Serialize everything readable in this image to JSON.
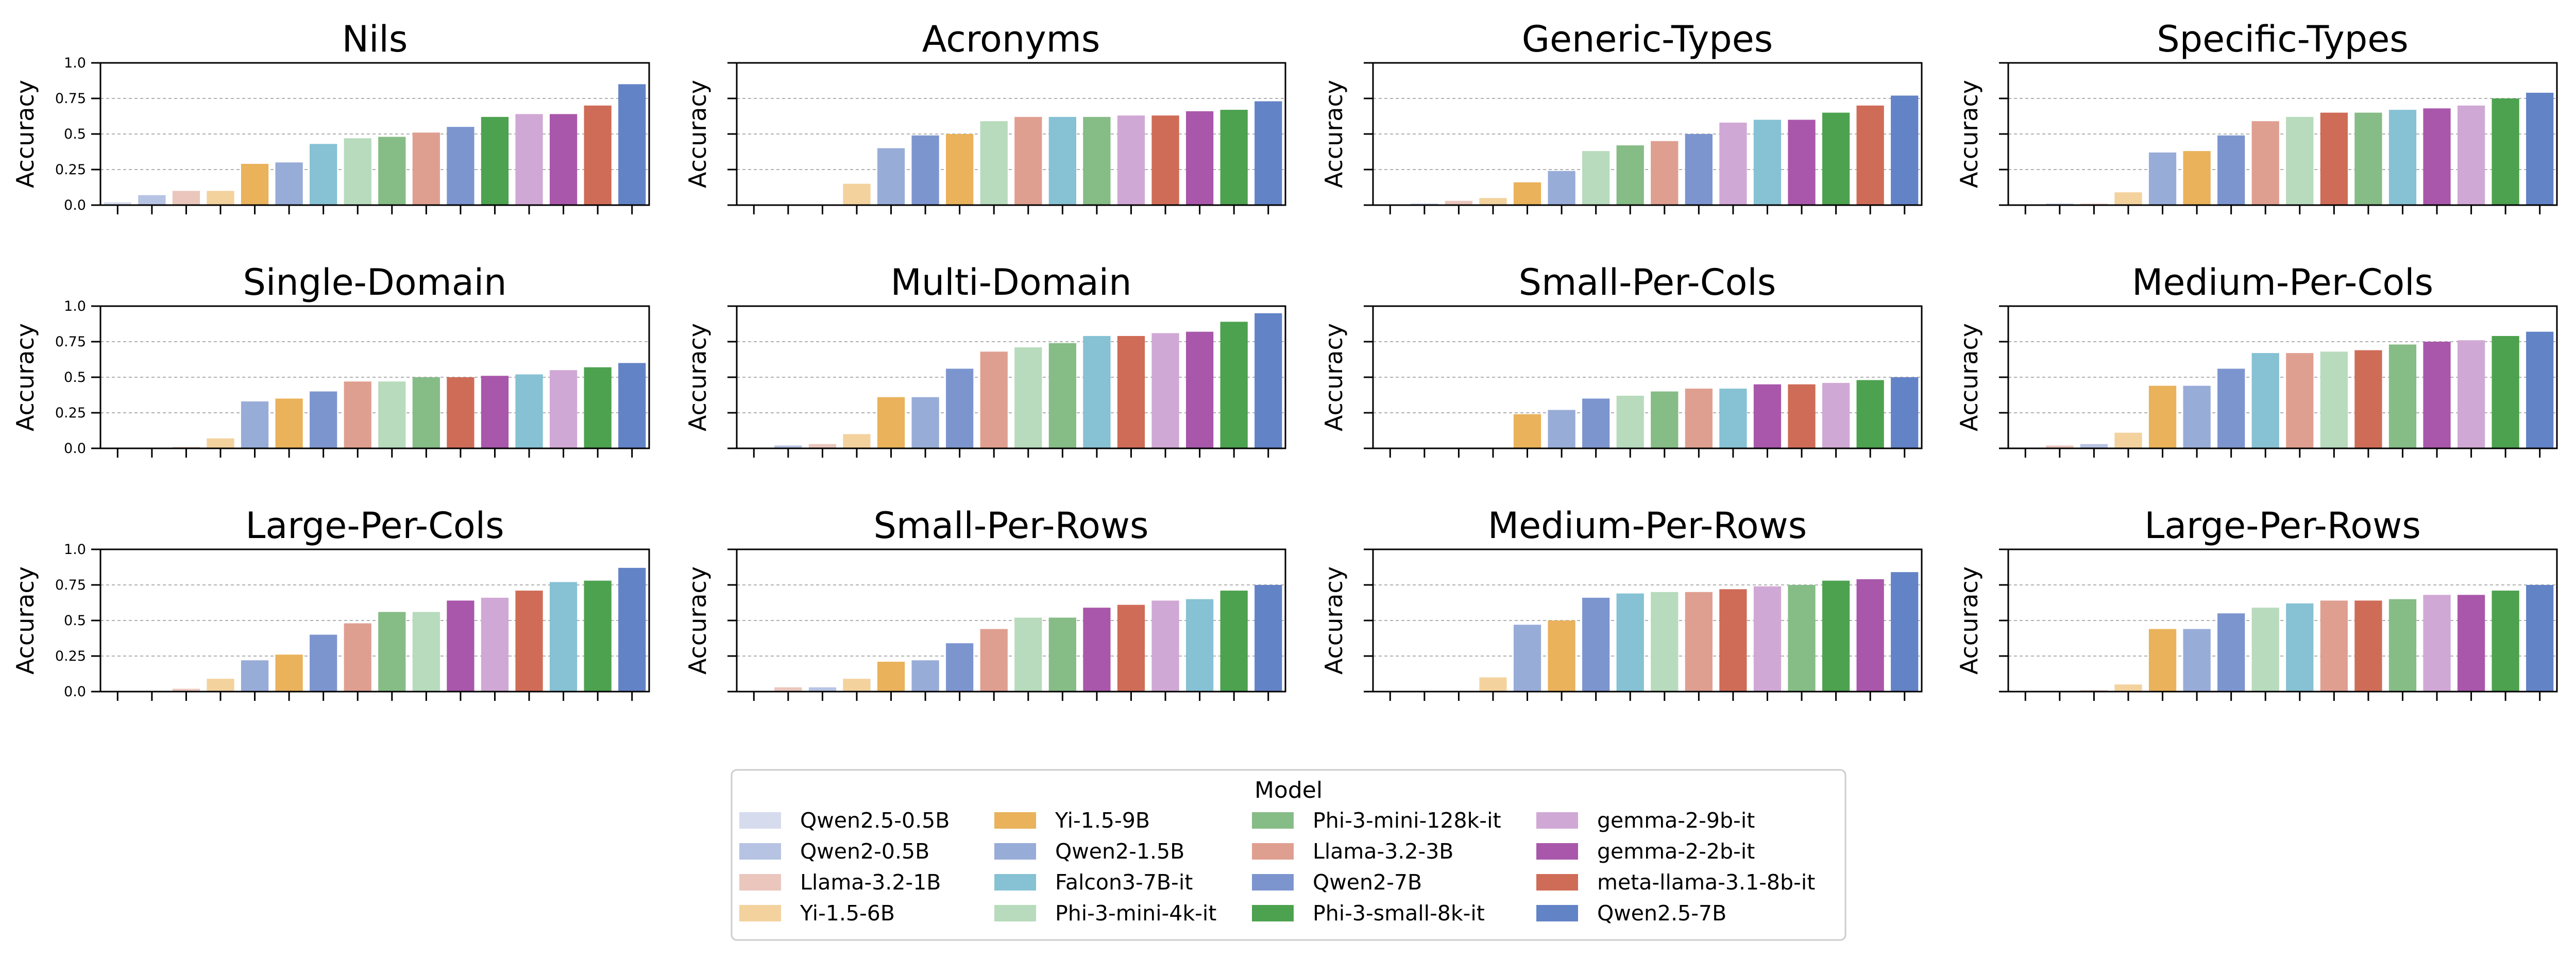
{
  "legend": {
    "title": "Model",
    "entries": [
      {
        "name": "Qwen2.5-0.5B",
        "color": "#d6dcee"
      },
      {
        "name": "Qwen2-0.5B",
        "color": "#b7c3e3"
      },
      {
        "name": "Llama-3.2-1B",
        "color": "#eac6bd"
      },
      {
        "name": "Yi-1.5-6B",
        "color": "#f3d29e"
      },
      {
        "name": "Yi-1.5-9B",
        "color": "#e9b25b"
      },
      {
        "name": "Qwen2-1.5B",
        "color": "#98acd8"
      },
      {
        "name": "Falcon3-7B-it",
        "color": "#86c1d4"
      },
      {
        "name": "Phi-3-mini-4k-it",
        "color": "#b7dbbc"
      },
      {
        "name": "Phi-3-mini-128k-it",
        "color": "#86bc86"
      },
      {
        "name": "Llama-3.2-3B",
        "color": "#df9f90"
      },
      {
        "name": "Qwen2-7B",
        "color": "#7d95cf"
      },
      {
        "name": "Phi-3-small-8k-it",
        "color": "#4da24f"
      },
      {
        "name": "gemma-2-9b-it",
        "color": "#d0a8d5"
      },
      {
        "name": "gemma-2-2b-it",
        "color": "#a957ab"
      },
      {
        "name": "meta-llama-3.1-8b-it",
        "color": "#cf6c57"
      },
      {
        "name": "Qwen2.5-7B",
        "color": "#6383c7"
      }
    ]
  },
  "chart_data": [
    {
      "type": "bar",
      "title": "Nils",
      "ylabel": "Accuracy",
      "ylim": [
        0,
        1
      ],
      "yticks": [
        "0.0",
        "0.25",
        "0.5",
        "0.75",
        "1.0"
      ],
      "grid": true,
      "series": [
        {
          "name": "Qwen2.5-0.5B",
          "value": 0.02
        },
        {
          "name": "Qwen2-0.5B",
          "value": 0.07
        },
        {
          "name": "Llama-3.2-1B",
          "value": 0.1
        },
        {
          "name": "Yi-1.5-6B",
          "value": 0.1
        },
        {
          "name": "Yi-1.5-9B",
          "value": 0.29
        },
        {
          "name": "Qwen2-1.5B",
          "value": 0.3
        },
        {
          "name": "Falcon3-7B-it",
          "value": 0.43
        },
        {
          "name": "Phi-3-mini-4k-it",
          "value": 0.47
        },
        {
          "name": "Phi-3-mini-128k-it",
          "value": 0.48
        },
        {
          "name": "Llama-3.2-3B",
          "value": 0.51
        },
        {
          "name": "Qwen2-7B",
          "value": 0.55
        },
        {
          "name": "Phi-3-small-8k-it",
          "value": 0.62
        },
        {
          "name": "gemma-2-9b-it",
          "value": 0.64
        },
        {
          "name": "gemma-2-2b-it",
          "value": 0.64
        },
        {
          "name": "meta-llama-3.1-8b-it",
          "value": 0.7
        },
        {
          "name": "Qwen2.5-7B",
          "value": 0.85
        }
      ]
    },
    {
      "type": "bar",
      "title": "Acronyms",
      "ylabel": "Accuracy",
      "ylim": [
        0,
        1
      ],
      "yticks": [],
      "grid": true,
      "series": [
        {
          "name": "Qwen2.5-0.5B",
          "value": 0.0
        },
        {
          "name": "Qwen2-0.5B",
          "value": 0.0
        },
        {
          "name": "Llama-3.2-1B",
          "value": 0.0
        },
        {
          "name": "Yi-1.5-6B",
          "value": 0.15
        },
        {
          "name": "Qwen2-1.5B",
          "value": 0.4
        },
        {
          "name": "Qwen2-7B",
          "value": 0.49
        },
        {
          "name": "Yi-1.5-9B",
          "value": 0.5
        },
        {
          "name": "Phi-3-mini-4k-it",
          "value": 0.59
        },
        {
          "name": "Llama-3.2-3B",
          "value": 0.62
        },
        {
          "name": "Falcon3-7B-it",
          "value": 0.62
        },
        {
          "name": "Phi-3-mini-128k-it",
          "value": 0.62
        },
        {
          "name": "gemma-2-9b-it",
          "value": 0.63
        },
        {
          "name": "meta-llama-3.1-8b-it",
          "value": 0.63
        },
        {
          "name": "gemma-2-2b-it",
          "value": 0.66
        },
        {
          "name": "Phi-3-small-8k-it",
          "value": 0.67
        },
        {
          "name": "Qwen2.5-7B",
          "value": 0.73
        }
      ]
    },
    {
      "type": "bar",
      "title": "Generic-Types",
      "ylabel": "Accuracy",
      "ylim": [
        0,
        1
      ],
      "yticks": [],
      "grid": true,
      "series": [
        {
          "name": "Qwen2.5-0.5B",
          "value": 0.0
        },
        {
          "name": "Qwen2-0.5B",
          "value": 0.01
        },
        {
          "name": "Llama-3.2-1B",
          "value": 0.03
        },
        {
          "name": "Yi-1.5-6B",
          "value": 0.05
        },
        {
          "name": "Yi-1.5-9B",
          "value": 0.16
        },
        {
          "name": "Qwen2-1.5B",
          "value": 0.24
        },
        {
          "name": "Phi-3-mini-4k-it",
          "value": 0.38
        },
        {
          "name": "Phi-3-mini-128k-it",
          "value": 0.42
        },
        {
          "name": "Llama-3.2-3B",
          "value": 0.45
        },
        {
          "name": "Qwen2-7B",
          "value": 0.5
        },
        {
          "name": "gemma-2-9b-it",
          "value": 0.58
        },
        {
          "name": "Falcon3-7B-it",
          "value": 0.6
        },
        {
          "name": "gemma-2-2b-it",
          "value": 0.6
        },
        {
          "name": "Phi-3-small-8k-it",
          "value": 0.65
        },
        {
          "name": "meta-llama-3.1-8b-it",
          "value": 0.7
        },
        {
          "name": "Qwen2.5-7B",
          "value": 0.77
        }
      ]
    },
    {
      "type": "bar",
      "title": "Specific-Types",
      "ylabel": "Accuracy",
      "ylim": [
        0,
        1
      ],
      "yticks": [],
      "grid": true,
      "series": [
        {
          "name": "Qwen2.5-0.5B",
          "value": 0.0
        },
        {
          "name": "Qwen2-0.5B",
          "value": 0.01
        },
        {
          "name": "Llama-3.2-1B",
          "value": 0.01
        },
        {
          "name": "Yi-1.5-6B",
          "value": 0.09
        },
        {
          "name": "Qwen2-1.5B",
          "value": 0.37
        },
        {
          "name": "Yi-1.5-9B",
          "value": 0.38
        },
        {
          "name": "Qwen2-7B",
          "value": 0.49
        },
        {
          "name": "Llama-3.2-3B",
          "value": 0.59
        },
        {
          "name": "Phi-3-mini-4k-it",
          "value": 0.62
        },
        {
          "name": "meta-llama-3.1-8b-it",
          "value": 0.65
        },
        {
          "name": "Phi-3-mini-128k-it",
          "value": 0.65
        },
        {
          "name": "Falcon3-7B-it",
          "value": 0.67
        },
        {
          "name": "gemma-2-2b-it",
          "value": 0.68
        },
        {
          "name": "gemma-2-9b-it",
          "value": 0.7
        },
        {
          "name": "Phi-3-small-8k-it",
          "value": 0.75
        },
        {
          "name": "Qwen2.5-7B",
          "value": 0.79
        }
      ]
    },
    {
      "type": "bar",
      "title": "Single-Domain",
      "ylabel": "Accuracy",
      "ylim": [
        0,
        1
      ],
      "yticks": [
        "0.0",
        "0.25",
        "0.5",
        "0.75",
        "1.0"
      ],
      "grid": true,
      "series": [
        {
          "name": "Qwen2.5-0.5B",
          "value": 0.0
        },
        {
          "name": "Qwen2-0.5B",
          "value": 0.0
        },
        {
          "name": "Llama-3.2-1B",
          "value": 0.01
        },
        {
          "name": "Yi-1.5-6B",
          "value": 0.07
        },
        {
          "name": "Qwen2-1.5B",
          "value": 0.33
        },
        {
          "name": "Yi-1.5-9B",
          "value": 0.35
        },
        {
          "name": "Qwen2-7B",
          "value": 0.4
        },
        {
          "name": "Llama-3.2-3B",
          "value": 0.47
        },
        {
          "name": "Phi-3-mini-4k-it",
          "value": 0.47
        },
        {
          "name": "Phi-3-mini-128k-it",
          "value": 0.5
        },
        {
          "name": "meta-llama-3.1-8b-it",
          "value": 0.5
        },
        {
          "name": "gemma-2-2b-it",
          "value": 0.51
        },
        {
          "name": "Falcon3-7B-it",
          "value": 0.52
        },
        {
          "name": "gemma-2-9b-it",
          "value": 0.55
        },
        {
          "name": "Phi-3-small-8k-it",
          "value": 0.57
        },
        {
          "name": "Qwen2.5-7B",
          "value": 0.6
        }
      ]
    },
    {
      "type": "bar",
      "title": "Multi-Domain",
      "ylabel": "Accuracy",
      "ylim": [
        0,
        1
      ],
      "yticks": [],
      "grid": true,
      "series": [
        {
          "name": "Qwen2.5-0.5B",
          "value": 0.0
        },
        {
          "name": "Qwen2-0.5B",
          "value": 0.02
        },
        {
          "name": "Llama-3.2-1B",
          "value": 0.03
        },
        {
          "name": "Yi-1.5-6B",
          "value": 0.1
        },
        {
          "name": "Yi-1.5-9B",
          "value": 0.36
        },
        {
          "name": "Qwen2-1.5B",
          "value": 0.36
        },
        {
          "name": "Qwen2-7B",
          "value": 0.56
        },
        {
          "name": "Llama-3.2-3B",
          "value": 0.68
        },
        {
          "name": "Phi-3-mini-4k-it",
          "value": 0.71
        },
        {
          "name": "Phi-3-mini-128k-it",
          "value": 0.74
        },
        {
          "name": "Falcon3-7B-it",
          "value": 0.79
        },
        {
          "name": "meta-llama-3.1-8b-it",
          "value": 0.79
        },
        {
          "name": "gemma-2-9b-it",
          "value": 0.81
        },
        {
          "name": "gemma-2-2b-it",
          "value": 0.82
        },
        {
          "name": "Phi-3-small-8k-it",
          "value": 0.89
        },
        {
          "name": "Qwen2.5-7B",
          "value": 0.95
        }
      ]
    },
    {
      "type": "bar",
      "title": "Small-Per-Cols",
      "ylabel": "Accuracy",
      "ylim": [
        0,
        1
      ],
      "yticks": [],
      "grid": true,
      "series": [
        {
          "name": "Qwen2.5-0.5B",
          "value": 0.0
        },
        {
          "name": "Qwen2-0.5B",
          "value": 0.0
        },
        {
          "name": "Llama-3.2-1B",
          "value": 0.0
        },
        {
          "name": "Yi-1.5-6B",
          "value": 0.0
        },
        {
          "name": "Yi-1.5-9B",
          "value": 0.24
        },
        {
          "name": "Qwen2-1.5B",
          "value": 0.27
        },
        {
          "name": "Qwen2-7B",
          "value": 0.35
        },
        {
          "name": "Phi-3-mini-4k-it",
          "value": 0.37
        },
        {
          "name": "Phi-3-mini-128k-it",
          "value": 0.4
        },
        {
          "name": "Llama-3.2-3B",
          "value": 0.42
        },
        {
          "name": "Falcon3-7B-it",
          "value": 0.42
        },
        {
          "name": "gemma-2-2b-it",
          "value": 0.45
        },
        {
          "name": "meta-llama-3.1-8b-it",
          "value": 0.45
        },
        {
          "name": "gemma-2-9b-it",
          "value": 0.46
        },
        {
          "name": "Phi-3-small-8k-it",
          "value": 0.48
        },
        {
          "name": "Qwen2.5-7B",
          "value": 0.5
        }
      ]
    },
    {
      "type": "bar",
      "title": "Medium-Per-Cols",
      "ylabel": "Accuracy",
      "ylim": [
        0,
        1
      ],
      "yticks": [],
      "grid": true,
      "series": [
        {
          "name": "Qwen2.5-0.5B",
          "value": 0.0
        },
        {
          "name": "Llama-3.2-1B",
          "value": 0.02
        },
        {
          "name": "Qwen2-0.5B",
          "value": 0.03
        },
        {
          "name": "Yi-1.5-6B",
          "value": 0.11
        },
        {
          "name": "Yi-1.5-9B",
          "value": 0.44
        },
        {
          "name": "Qwen2-1.5B",
          "value": 0.44
        },
        {
          "name": "Qwen2-7B",
          "value": 0.56
        },
        {
          "name": "Falcon3-7B-it",
          "value": 0.67
        },
        {
          "name": "Llama-3.2-3B",
          "value": 0.67
        },
        {
          "name": "Phi-3-mini-4k-it",
          "value": 0.68
        },
        {
          "name": "meta-llama-3.1-8b-it",
          "value": 0.69
        },
        {
          "name": "Phi-3-mini-128k-it",
          "value": 0.73
        },
        {
          "name": "gemma-2-2b-it",
          "value": 0.75
        },
        {
          "name": "gemma-2-9b-it",
          "value": 0.76
        },
        {
          "name": "Phi-3-small-8k-it",
          "value": 0.79
        },
        {
          "name": "Qwen2.5-7B",
          "value": 0.82
        }
      ]
    },
    {
      "type": "bar",
      "title": "Large-Per-Cols",
      "ylabel": "Accuracy",
      "ylim": [
        0,
        1
      ],
      "yticks": [
        "0.0",
        "0.25",
        "0.5",
        "0.75",
        "1.0"
      ],
      "grid": true,
      "series": [
        {
          "name": "Qwen2.5-0.5B",
          "value": 0.0
        },
        {
          "name": "Qwen2-0.5B",
          "value": 0.0
        },
        {
          "name": "Llama-3.2-1B",
          "value": 0.02
        },
        {
          "name": "Yi-1.5-6B",
          "value": 0.09
        },
        {
          "name": "Qwen2-1.5B",
          "value": 0.22
        },
        {
          "name": "Yi-1.5-9B",
          "value": 0.26
        },
        {
          "name": "Qwen2-7B",
          "value": 0.4
        },
        {
          "name": "Llama-3.2-3B",
          "value": 0.48
        },
        {
          "name": "Phi-3-mini-128k-it",
          "value": 0.56
        },
        {
          "name": "Phi-3-mini-4k-it",
          "value": 0.56
        },
        {
          "name": "gemma-2-2b-it",
          "value": 0.64
        },
        {
          "name": "gemma-2-9b-it",
          "value": 0.66
        },
        {
          "name": "meta-llama-3.1-8b-it",
          "value": 0.71
        },
        {
          "name": "Falcon3-7B-it",
          "value": 0.77
        },
        {
          "name": "Phi-3-small-8k-it",
          "value": 0.78
        },
        {
          "name": "Qwen2.5-7B",
          "value": 0.87
        }
      ]
    },
    {
      "type": "bar",
      "title": "Small-Per-Rows",
      "ylabel": "Accuracy",
      "ylim": [
        0,
        1
      ],
      "yticks": [],
      "grid": true,
      "series": [
        {
          "name": "Qwen2.5-0.5B",
          "value": 0.0
        },
        {
          "name": "Llama-3.2-1B",
          "value": 0.03
        },
        {
          "name": "Qwen2-0.5B",
          "value": 0.03
        },
        {
          "name": "Yi-1.5-6B",
          "value": 0.09
        },
        {
          "name": "Yi-1.5-9B",
          "value": 0.21
        },
        {
          "name": "Qwen2-1.5B",
          "value": 0.22
        },
        {
          "name": "Qwen2-7B",
          "value": 0.34
        },
        {
          "name": "Llama-3.2-3B",
          "value": 0.44
        },
        {
          "name": "Phi-3-mini-4k-it",
          "value": 0.52
        },
        {
          "name": "Phi-3-mini-128k-it",
          "value": 0.52
        },
        {
          "name": "gemma-2-2b-it",
          "value": 0.59
        },
        {
          "name": "meta-llama-3.1-8b-it",
          "value": 0.61
        },
        {
          "name": "gemma-2-9b-it",
          "value": 0.64
        },
        {
          "name": "Falcon3-7B-it",
          "value": 0.65
        },
        {
          "name": "Phi-3-small-8k-it",
          "value": 0.71
        },
        {
          "name": "Qwen2.5-7B",
          "value": 0.75
        }
      ]
    },
    {
      "type": "bar",
      "title": "Medium-Per-Rows",
      "ylabel": "Accuracy",
      "ylim": [
        0,
        1
      ],
      "yticks": [],
      "grid": true,
      "series": [
        {
          "name": "Qwen2.5-0.5B",
          "value": 0.0
        },
        {
          "name": "Qwen2-0.5B",
          "value": 0.0
        },
        {
          "name": "Llama-3.2-1B",
          "value": 0.0
        },
        {
          "name": "Yi-1.5-6B",
          "value": 0.1
        },
        {
          "name": "Qwen2-1.5B",
          "value": 0.47
        },
        {
          "name": "Yi-1.5-9B",
          "value": 0.5
        },
        {
          "name": "Qwen2-7B",
          "value": 0.66
        },
        {
          "name": "Falcon3-7B-it",
          "value": 0.69
        },
        {
          "name": "Phi-3-mini-4k-it",
          "value": 0.7
        },
        {
          "name": "Llama-3.2-3B",
          "value": 0.7
        },
        {
          "name": "meta-llama-3.1-8b-it",
          "value": 0.72
        },
        {
          "name": "gemma-2-9b-it",
          "value": 0.74
        },
        {
          "name": "Phi-3-mini-128k-it",
          "value": 0.75
        },
        {
          "name": "Phi-3-small-8k-it",
          "value": 0.78
        },
        {
          "name": "gemma-2-2b-it",
          "value": 0.79
        },
        {
          "name": "Qwen2.5-7B",
          "value": 0.84
        }
      ]
    },
    {
      "type": "bar",
      "title": "Large-Per-Rows",
      "ylabel": "Accuracy",
      "ylim": [
        0,
        1
      ],
      "yticks": [],
      "grid": true,
      "series": [
        {
          "name": "Qwen2.5-0.5B",
          "value": 0.0
        },
        {
          "name": "Qwen2-0.5B",
          "value": 0.0
        },
        {
          "name": "Llama-3.2-1B",
          "value": 0.01
        },
        {
          "name": "Yi-1.5-6B",
          "value": 0.05
        },
        {
          "name": "Yi-1.5-9B",
          "value": 0.44
        },
        {
          "name": "Qwen2-1.5B",
          "value": 0.44
        },
        {
          "name": "Qwen2-7B",
          "value": 0.55
        },
        {
          "name": "Phi-3-mini-4k-it",
          "value": 0.59
        },
        {
          "name": "Falcon3-7B-it",
          "value": 0.62
        },
        {
          "name": "Llama-3.2-3B",
          "value": 0.64
        },
        {
          "name": "meta-llama-3.1-8b-it",
          "value": 0.64
        },
        {
          "name": "Phi-3-mini-128k-it",
          "value": 0.65
        },
        {
          "name": "gemma-2-9b-it",
          "value": 0.68
        },
        {
          "name": "gemma-2-2b-it",
          "value": 0.68
        },
        {
          "name": "Phi-3-small-8k-it",
          "value": 0.71
        },
        {
          "name": "Qwen2.5-7B",
          "value": 0.75
        }
      ]
    }
  ]
}
